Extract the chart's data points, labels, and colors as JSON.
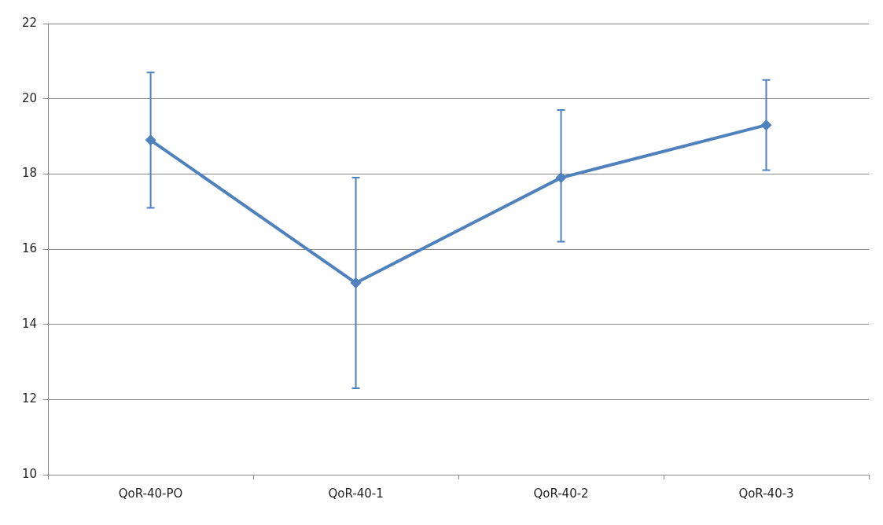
{
  "chart_data": {
    "type": "line",
    "categories": [
      "QoR-40-PO",
      "QoR-40-1",
      "QoR-40-2",
      "QoR-40-3"
    ],
    "series": [
      {
        "color": "#4f81bd",
        "values": [
          18.9,
          15.1,
          17.9,
          19.3
        ],
        "errors": [
          [
            17.1,
            20.7
          ],
          [
            12.3,
            17.9
          ],
          [
            16.2,
            19.7
          ],
          [
            18.1,
            20.5
          ]
        ]
      }
    ],
    "ylim": [
      10,
      22
    ],
    "yticks": [
      10,
      12,
      14,
      16,
      18,
      20,
      22
    ],
    "grid": "y",
    "legend": false,
    "marker": "diamond",
    "line_style": "solid"
  }
}
